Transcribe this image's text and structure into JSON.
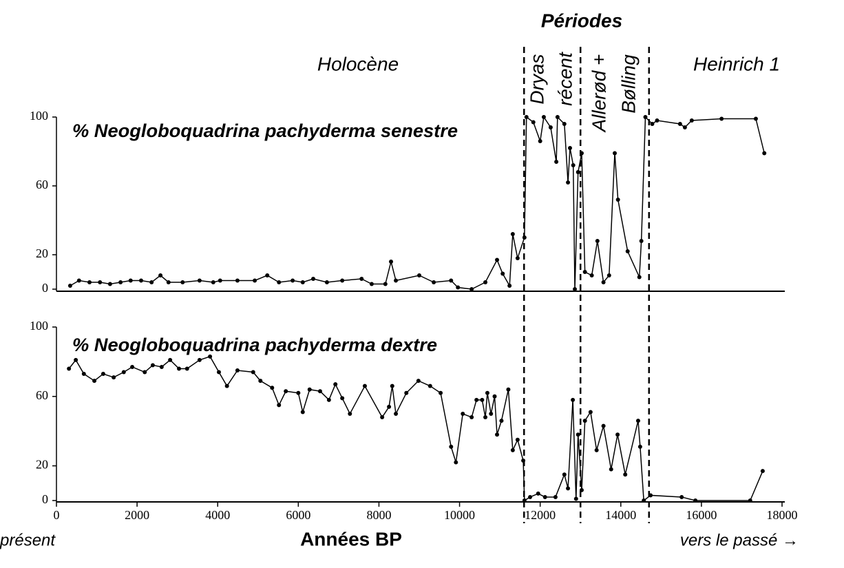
{
  "title": "Périodes",
  "periods": [
    {
      "lines": [
        "Holocène"
      ]
    },
    {
      "lines": [
        "Dryas",
        "récent"
      ]
    },
    {
      "lines": [
        "Allerød +",
        "Bølling"
      ]
    },
    {
      "lines": [
        "Heinrich 1"
      ]
    }
  ],
  "period_boundaries": [
    11600,
    13000,
    14700
  ],
  "x_label": "Années BP",
  "x_start_label": "présent",
  "x_end_label": "vers le passé →",
  "chart_data": [
    {
      "type": "line",
      "title": "% Neogloboquadrina pachyderma senestre",
      "color": "#000000",
      "x": [
        340,
        560,
        820,
        1080,
        1330,
        1590,
        1840,
        2100,
        2360,
        2580,
        2780,
        3130,
        3550,
        3890,
        4060,
        4490,
        4920,
        5230,
        5520,
        5860,
        6110,
        6370,
        6710,
        7090,
        7570,
        7820,
        8160,
        8300,
        8420,
        9000,
        9360,
        9790,
        9960,
        10300,
        10640,
        10930,
        11070,
        11240,
        11320,
        11440,
        11610,
        11660,
        11830,
        12000,
        12090,
        12260,
        12400,
        12430,
        12600,
        12690,
        12740,
        12820,
        12860,
        12940,
        13030,
        13110,
        13280,
        13420,
        13570,
        13710,
        13850,
        13930,
        14170,
        14460,
        14510,
        14610,
        14780,
        14900,
        15470,
        15590,
        15760,
        16500,
        17350,
        17560
      ],
      "values": [
        2,
        5,
        4,
        4,
        3,
        4,
        5,
        5,
        4,
        8,
        4,
        4,
        5,
        4,
        5,
        5,
        5,
        8,
        4,
        5,
        4,
        6,
        4,
        5,
        6,
        3,
        3,
        16,
        5,
        8,
        4,
        5,
        1,
        0,
        4,
        17,
        9,
        2,
        32,
        18,
        30,
        100,
        97,
        86,
        100,
        94,
        74,
        100,
        96,
        62,
        82,
        72,
        0,
        68,
        79,
        10,
        8,
        28,
        4,
        8,
        79,
        52,
        22,
        7,
        28,
        100,
        96,
        98,
        96,
        94,
        98,
        99,
        99,
        79
      ],
      "xlim": [
        0,
        18000
      ],
      "ylim": [
        0,
        100
      ],
      "yticks": [
        0,
        20,
        60,
        100
      ]
    },
    {
      "type": "line",
      "title": "% Neogloboquadrina pachyderma dextre",
      "color": "#000000",
      "x": [
        310,
        480,
        680,
        940,
        1160,
        1420,
        1670,
        1880,
        2190,
        2390,
        2610,
        2820,
        3040,
        3240,
        3550,
        3810,
        4030,
        4230,
        4490,
        4880,
        5060,
        5350,
        5520,
        5690,
        6000,
        6110,
        6280,
        6540,
        6760,
        6920,
        7090,
        7280,
        7650,
        8080,
        8250,
        8330,
        8420,
        8680,
        8980,
        9270,
        9530,
        9790,
        9910,
        10080,
        10300,
        10420,
        10560,
        10640,
        10690,
        10780,
        10870,
        10930,
        11040,
        11210,
        11320,
        11440,
        11580,
        11610,
        11750,
        11950,
        12120,
        12380,
        12600,
        12690,
        12810,
        12890,
        12940,
        13030,
        13110,
        13250,
        13400,
        13570,
        13760,
        13920,
        14110,
        14430,
        14480,
        14570,
        14740,
        15510,
        15850,
        17210,
        17520
      ],
      "values": [
        76,
        81,
        73,
        69,
        73,
        71,
        74,
        77,
        74,
        78,
        77,
        81,
        76,
        76,
        81,
        83,
        74,
        66,
        75,
        74,
        69,
        65,
        55,
        63,
        62,
        51,
        64,
        63,
        58,
        67,
        59,
        50,
        66,
        48,
        54,
        66,
        50,
        62,
        69,
        66,
        62,
        31,
        22,
        50,
        48,
        58,
        58,
        48,
        62,
        50,
        60,
        38,
        46,
        64,
        29,
        35,
        23,
        0,
        2,
        4,
        2,
        2,
        15,
        7,
        58,
        1,
        38,
        6,
        46,
        51,
        29,
        43,
        18,
        38,
        15,
        46,
        31,
        0,
        3,
        2,
        0,
        0,
        17
      ],
      "xlim": [
        0,
        18000
      ],
      "ylim": [
        0,
        100
      ],
      "yticks": [
        0,
        20,
        60,
        100
      ],
      "xticks": [
        0,
        2000,
        4000,
        6000,
        8000,
        10000,
        12000,
        14000,
        16000,
        18000
      ]
    }
  ]
}
